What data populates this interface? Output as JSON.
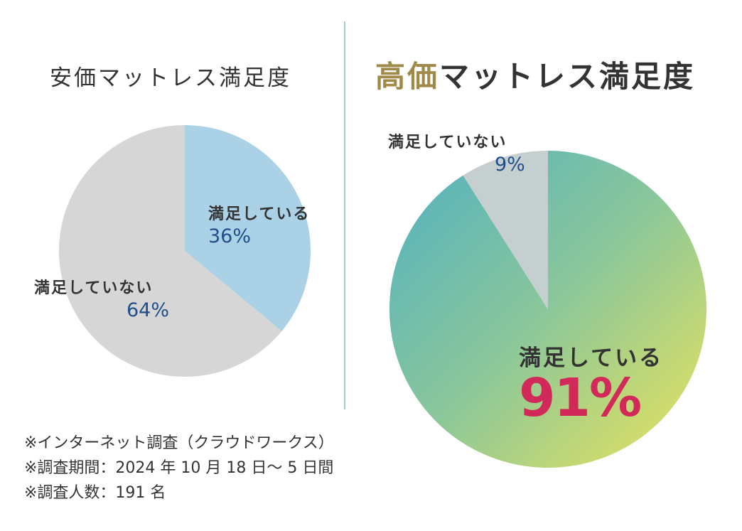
{
  "chart_data": [
    {
      "type": "pie",
      "title": "安価マットレス満足度",
      "slices": [
        {
          "label": "満足している",
          "value": 36,
          "value_label": "36%",
          "color": "#aad1e6"
        },
        {
          "label": "満足していない",
          "value": 64,
          "value_label": "64%",
          "color": "#d6d6d6"
        }
      ]
    },
    {
      "type": "pie",
      "title_highlight": "高価",
      "title_rest": "マットレス満足度",
      "slices": [
        {
          "label": "満足している",
          "value": 91,
          "value_label": "91%",
          "gradient": [
            "#4fb0c2",
            "#8bc79a",
            "#ece45a"
          ]
        },
        {
          "label": "満足していない",
          "value": 9,
          "value_label": "9%",
          "color": "#c6cfd0"
        }
      ]
    }
  ],
  "colors": {
    "title_highlight": "#a08a4a",
    "small_percent": "#1f4f8a",
    "big_percent": "#d12a5a",
    "divider": "#a9c8d6"
  },
  "notes": [
    "※インターネット調査（クラウドワークス）",
    "※調査期間：2024 年 10 月 18 日～ 5 日間",
    "※調査人数：191 名"
  ]
}
